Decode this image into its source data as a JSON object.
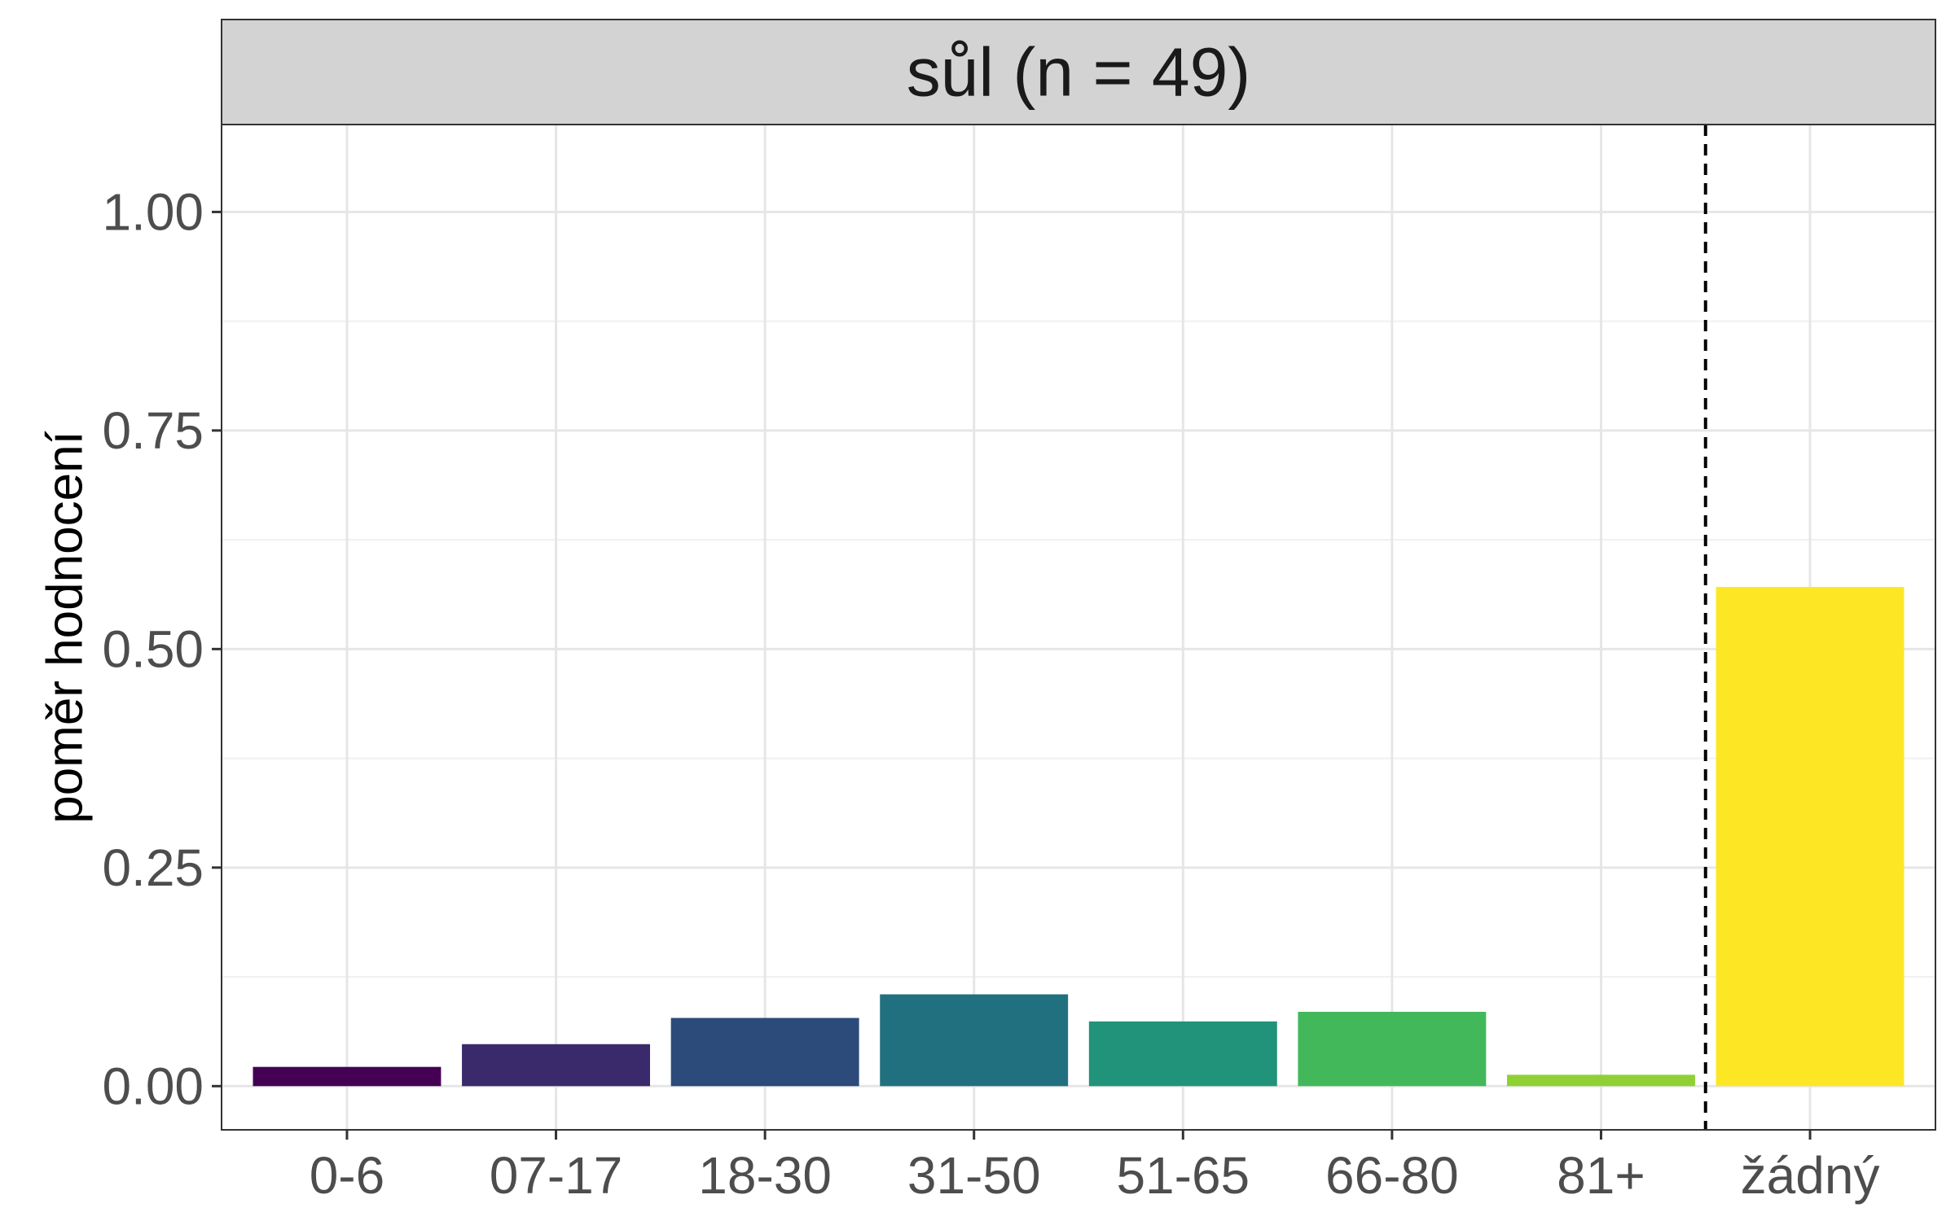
{
  "chart_data": {
    "type": "bar",
    "facet_title": "sůl (n = 49)",
    "ylabel": "poměr hodnocení",
    "xlabel": "",
    "categories": [
      "0-6",
      "07-17",
      "18-30",
      "31-50",
      "51-65",
      "66-80",
      "81+",
      "žádný"
    ],
    "values": [
      0.022,
      0.048,
      0.078,
      0.105,
      0.074,
      0.085,
      0.013,
      0.571
    ],
    "colors": [
      "#440154",
      "#3a2a6b",
      "#2c4b7a",
      "#21707f",
      "#21937a",
      "#43b85b",
      "#8fd134",
      "#fde725"
    ],
    "ylim": [
      -0.05,
      1.1
    ],
    "yticks": [
      0.0,
      0.25,
      0.5,
      0.75,
      1.0
    ],
    "ytick_labels": [
      "0.00",
      "0.25",
      "0.50",
      "0.75",
      "1.00"
    ],
    "separator_line": {
      "style": "dashed",
      "between": [
        "81+",
        "žádný"
      ]
    },
    "grid": true,
    "legend": "none"
  }
}
